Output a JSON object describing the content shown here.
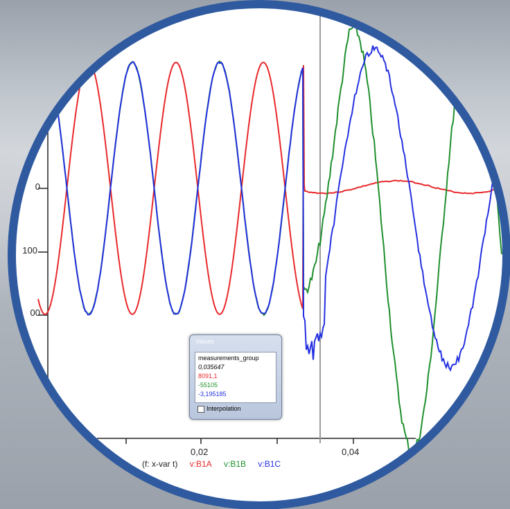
{
  "chart_data": {
    "type": "line",
    "xlabel": "t",
    "x_tick_labels": [
      "0,02",
      "0,04"
    ],
    "y_tick_labels": [
      "0",
      "100",
      "00"
    ],
    "series": [
      {
        "name": "v:B1A",
        "color": "#e8282a"
      },
      {
        "name": "v:B1B",
        "color": "#1e8f2c"
      },
      {
        "name": "v:B1C",
        "color": "#2430e0"
      }
    ]
  },
  "legend": {
    "prefix": "(f: x-var t)",
    "items": [
      {
        "label": "v:B1A",
        "color": "#e8282a"
      },
      {
        "label": "v:B1B",
        "color": "#1e8f2c"
      },
      {
        "label": "v:B1C",
        "color": "#2430e0"
      }
    ]
  },
  "values_panel": {
    "title": "Values",
    "header": "measurements_group",
    "rows": [
      {
        "text": "0,035647",
        "color": "#000000"
      },
      {
        "text": "8091,1",
        "color": "#e8282a"
      },
      {
        "text": "-55105",
        "color": "#1e8f2c"
      },
      {
        "text": "-3,195185",
        "color": "#2430e0"
      }
    ],
    "interpolation_label": "Interpolation"
  },
  "colors": {
    "ring": "#2f5aa0",
    "background_tint": "#b8bec6"
  }
}
